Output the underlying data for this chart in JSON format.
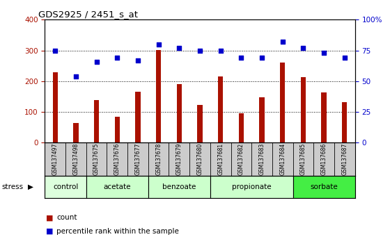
{
  "title": "GDS2925 / 2451_s_at",
  "samples": [
    "GSM137497",
    "GSM137498",
    "GSM137675",
    "GSM137676",
    "GSM137677",
    "GSM137678",
    "GSM137679",
    "GSM137680",
    "GSM137681",
    "GSM137682",
    "GSM137683",
    "GSM137684",
    "GSM137685",
    "GSM137686",
    "GSM137687"
  ],
  "counts": [
    228,
    65,
    138,
    84,
    165,
    302,
    190,
    122,
    215,
    95,
    148,
    260,
    213,
    163,
    132
  ],
  "percentiles": [
    75,
    54,
    66,
    69,
    67,
    80,
    77,
    75,
    75,
    69,
    69,
    82,
    77,
    73,
    69
  ],
  "groups": [
    {
      "label": "control",
      "start": 0,
      "end": 1,
      "color": "#ddffdd"
    },
    {
      "label": "acetate",
      "start": 2,
      "end": 4,
      "color": "#ccffcc"
    },
    {
      "label": "benzoate",
      "start": 5,
      "end": 7,
      "color": "#ccffcc"
    },
    {
      "label": "propionate",
      "start": 8,
      "end": 11,
      "color": "#ccffcc"
    },
    {
      "label": "sorbate",
      "start": 12,
      "end": 14,
      "color": "#44ee44"
    }
  ],
  "ylim_left": [
    0,
    400
  ],
  "ylim_right": [
    0,
    100
  ],
  "yticks_left": [
    0,
    100,
    200,
    300,
    400
  ],
  "yticks_right": [
    0,
    25,
    50,
    75,
    100
  ],
  "bar_color": "#aa1100",
  "dot_color": "#0000cc",
  "bg_color": "#cccccc",
  "stress_label": "stress",
  "legend_count": "count",
  "legend_pct": "percentile rank within the sample",
  "bar_width": 0.25
}
